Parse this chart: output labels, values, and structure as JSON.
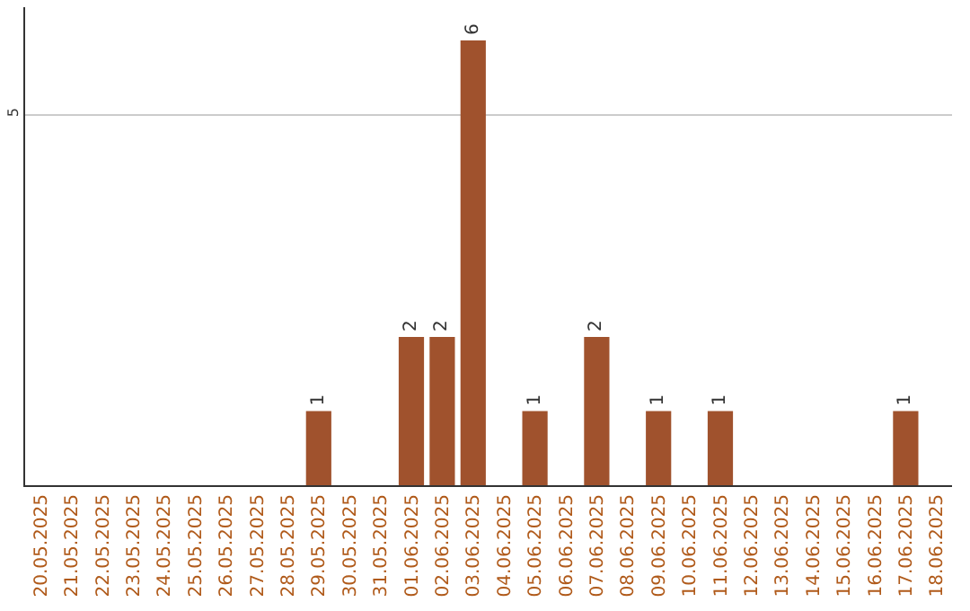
{
  "chart_data": {
    "type": "bar",
    "categories": [
      "20.05.2025",
      "21.05.2025",
      "22.05.2025",
      "23.05.2025",
      "24.05.2025",
      "25.05.2025",
      "26.05.2025",
      "27.05.2025",
      "28.05.2025",
      "29.05.2025",
      "30.05.2025",
      "31.05.2025",
      "01.06.2025",
      "02.06.2025",
      "03.06.2025",
      "04.06.2025",
      "05.06.2025",
      "06.06.2025",
      "07.06.2025",
      "08.06.2025",
      "09.06.2025",
      "10.06.2025",
      "11.06.2025",
      "12.06.2025",
      "13.06.2025",
      "14.06.2025",
      "15.06.2025",
      "16.06.2025",
      "17.06.2025",
      "18.06.2025"
    ],
    "values": [
      0,
      0,
      0,
      0,
      0,
      0,
      0,
      0,
      0,
      1,
      0,
      0,
      2,
      2,
      6,
      0,
      1,
      0,
      2,
      0,
      1,
      0,
      1,
      0,
      0,
      0,
      0,
      0,
      1,
      0
    ],
    "value_labels": [
      null,
      null,
      null,
      null,
      null,
      null,
      null,
      null,
      null,
      "1",
      null,
      null,
      "2",
      "2",
      "6",
      null,
      "1",
      null,
      "2",
      null,
      "1",
      null,
      "1",
      null,
      null,
      null,
      null,
      null,
      "1",
      null
    ],
    "color": "#a0522d",
    "ylim": [
      0,
      6.45
    ],
    "yticks": [
      5
    ],
    "grid": "y",
    "legend": false
  }
}
